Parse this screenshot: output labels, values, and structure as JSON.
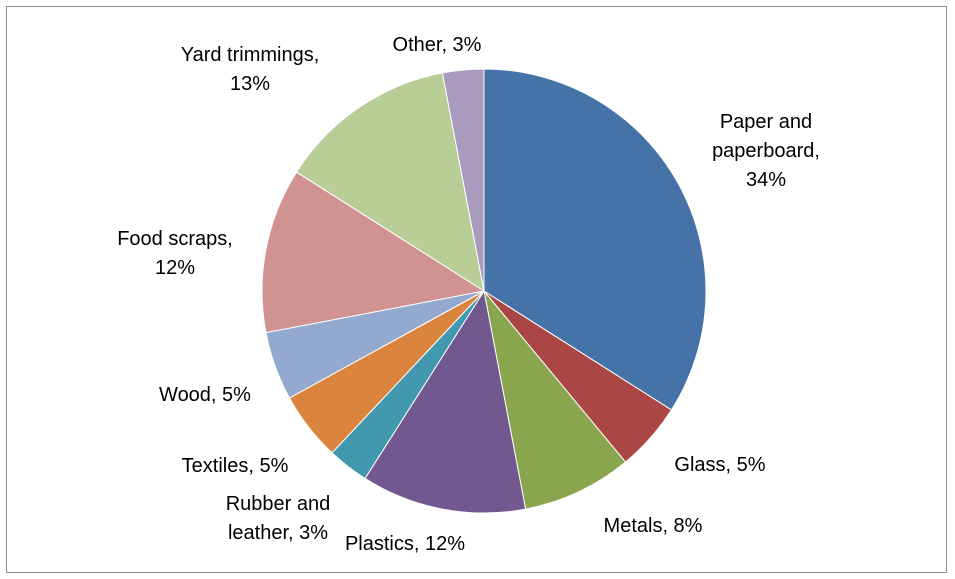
{
  "chart_data": {
    "type": "pie",
    "title": "",
    "start_angle_deg": 0,
    "direction": "clockwise",
    "slices": [
      {
        "name": "Paper and paperboard",
        "value": 34,
        "color": "#4572A7",
        "label": [
          "Paper and",
          "paperboard,",
          "34%"
        ]
      },
      {
        "name": "Glass",
        "value": 5,
        "color": "#AA4643",
        "label": [
          "Glass, 5%"
        ]
      },
      {
        "name": "Metals",
        "value": 8,
        "color": "#89A54E",
        "label": [
          "Metals, 8%"
        ]
      },
      {
        "name": "Plastics",
        "value": 12,
        "color": "#71588F",
        "label": [
          "Plastics, 12%"
        ]
      },
      {
        "name": "Rubber and leather",
        "value": 3,
        "color": "#4198AF",
        "label": [
          "Rubber and",
          "leather, 3%"
        ]
      },
      {
        "name": "Textiles",
        "value": 5,
        "color": "#DB843D",
        "label": [
          "Textiles, 5%"
        ]
      },
      {
        "name": "Wood",
        "value": 5,
        "color": "#93A9CF",
        "label": [
          "Wood, 5%"
        ]
      },
      {
        "name": "Food scraps",
        "value": 12,
        "color": "#D19392",
        "label": [
          "Food scraps,",
          "12%"
        ]
      },
      {
        "name": "Yard trimmings",
        "value": 13,
        "color": "#B9CD96",
        "label": [
          "Yard trimmings,",
          "13%"
        ]
      },
      {
        "name": "Other",
        "value": 3,
        "color": "#A99BBD",
        "label": [
          "Other, 3%"
        ]
      }
    ],
    "legend": "none",
    "data_labels": "outside"
  }
}
